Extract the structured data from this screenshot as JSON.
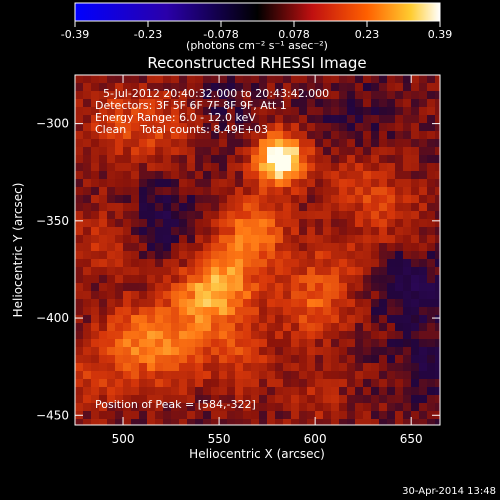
{
  "colorbar": {
    "ticks": [
      "-0.39",
      "-0.23",
      "-0.078",
      "0.078",
      "0.23",
      "0.39"
    ],
    "unit_label": "(photons cm⁻² s⁻¹ asec⁻²)",
    "range": [
      -0.39,
      0.39
    ]
  },
  "chart_data": {
    "type": "heatmap",
    "title": "Reconstructed RHESSI Image",
    "xlabel": "Heliocentric X (arcsec)",
    "ylabel": "Heliocentric Y (arcsec)",
    "xlim": [
      475,
      665
    ],
    "ylim": [
      -455,
      -275
    ],
    "xticks": [
      500,
      550,
      600,
      650
    ],
    "yticks": [
      -300,
      -350,
      -400,
      -450
    ],
    "annotations": [
      "5-Jul-2012 20:40:32.000 to 20:43:42.000",
      "Detectors: 3F 5F 6F 7F 8F 9F, Att 1",
      "Energy Range: 6.0 - 12.0 keV",
      "Clean    Total counts: 8.49E+03"
    ],
    "peak_label": "Position of Peak = [584,-322]",
    "peak": [
      584,
      -322
    ],
    "sources": [
      {
        "x": 582,
        "y": -318,
        "amp": 0.39
      },
      {
        "x": 568,
        "y": -355,
        "amp": 0.17
      },
      {
        "x": 552,
        "y": -383,
        "amp": 0.2
      },
      {
        "x": 538,
        "y": -395,
        "amp": 0.12
      },
      {
        "x": 598,
        "y": -392,
        "amp": 0.13
      },
      {
        "x": 508,
        "y": -410,
        "amp": 0.15
      },
      {
        "x": 525,
        "y": -420,
        "amp": 0.1
      },
      {
        "x": 560,
        "y": -420,
        "amp": 0.1
      },
      {
        "x": 498,
        "y": -300,
        "amp": 0.09
      },
      {
        "x": 522,
        "y": -302,
        "amp": 0.09
      },
      {
        "x": 622,
        "y": -330,
        "amp": 0.08
      },
      {
        "x": 640,
        "y": -345,
        "amp": 0.07
      },
      {
        "x": 612,
        "y": -372,
        "amp": 0.07
      },
      {
        "x": 490,
        "y": -360,
        "amp": 0.08
      },
      {
        "x": 485,
        "y": -430,
        "amp": 0.08
      },
      {
        "x": 600,
        "y": -440,
        "amp": 0.05
      }
    ],
    "negative_regions": [
      {
        "x": 650,
        "y": -385,
        "amp": -0.1
      },
      {
        "x": 520,
        "y": -350,
        "amp": -0.08
      },
      {
        "x": 620,
        "y": -300,
        "amp": -0.05
      },
      {
        "x": 660,
        "y": -425,
        "amp": -0.07
      },
      {
        "x": 550,
        "y": -290,
        "amp": -0.04
      }
    ]
  },
  "footer": {
    "date_stamp": "30-Apr-2014 13:48"
  }
}
